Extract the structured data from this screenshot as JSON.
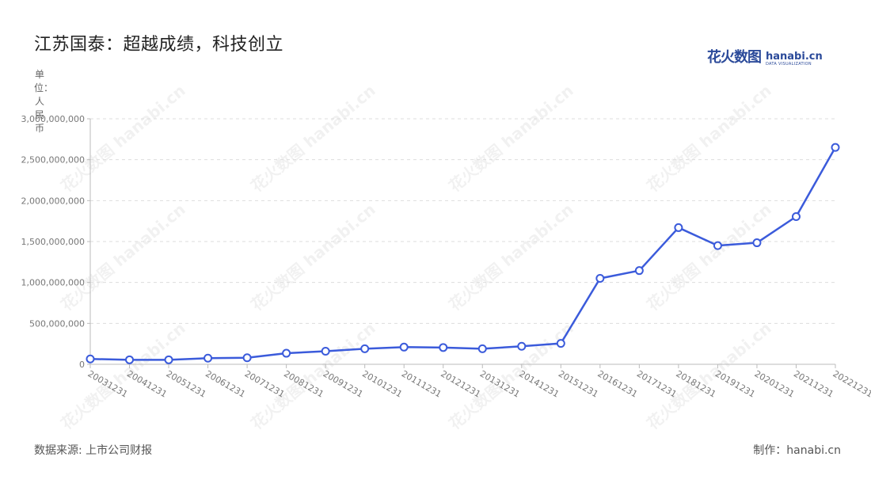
{
  "header": {
    "title": "江苏国泰：超越成绩，科技创立",
    "logo_cn": "花火数图",
    "logo_en": "hanabi.cn",
    "logo_sub": "DATA VISUALIZATION"
  },
  "footer": {
    "source": "数据来源: 上市公司财报",
    "credit": "制作：hanabi.cn"
  },
  "watermark": "花火数图 hanabi.cn",
  "colors": {
    "line": "#3b5bdb",
    "point_fill": "#ffffff",
    "grid": "#dddddd",
    "axis": "#bbbbbb"
  },
  "chart_data": {
    "type": "line",
    "title": "江苏国泰：超越成绩，科技创立",
    "ylabel": "单位：人民币",
    "xlabel": "",
    "ylim": [
      0,
      3000000000
    ],
    "yticks": [
      0,
      500000000,
      1000000000,
      1500000000,
      2000000000,
      2500000000,
      3000000000
    ],
    "ytick_labels": [
      "0",
      "500,000,000",
      "1,000,000,000",
      "1,500,000,000",
      "2,000,000,000",
      "2,500,000,000",
      "3,000,000,000"
    ],
    "categories": [
      "20031231",
      "20041231",
      "20051231",
      "20061231",
      "20071231",
      "20081231",
      "20091231",
      "20101231",
      "20111231",
      "20121231",
      "20131231",
      "20141231",
      "20151231",
      "20161231",
      "20171231",
      "20181231",
      "20191231",
      "20201231",
      "20211231",
      "20221231"
    ],
    "series": [
      {
        "values": [
          65000000,
          55000000,
          55000000,
          75000000,
          80000000,
          135000000,
          160000000,
          190000000,
          210000000,
          205000000,
          190000000,
          220000000,
          255000000,
          1050000000,
          1145000000,
          1670000000,
          1450000000,
          1485000000,
          1805000000,
          2650000000
        ]
      }
    ],
    "grid": true,
    "legend": "none"
  }
}
